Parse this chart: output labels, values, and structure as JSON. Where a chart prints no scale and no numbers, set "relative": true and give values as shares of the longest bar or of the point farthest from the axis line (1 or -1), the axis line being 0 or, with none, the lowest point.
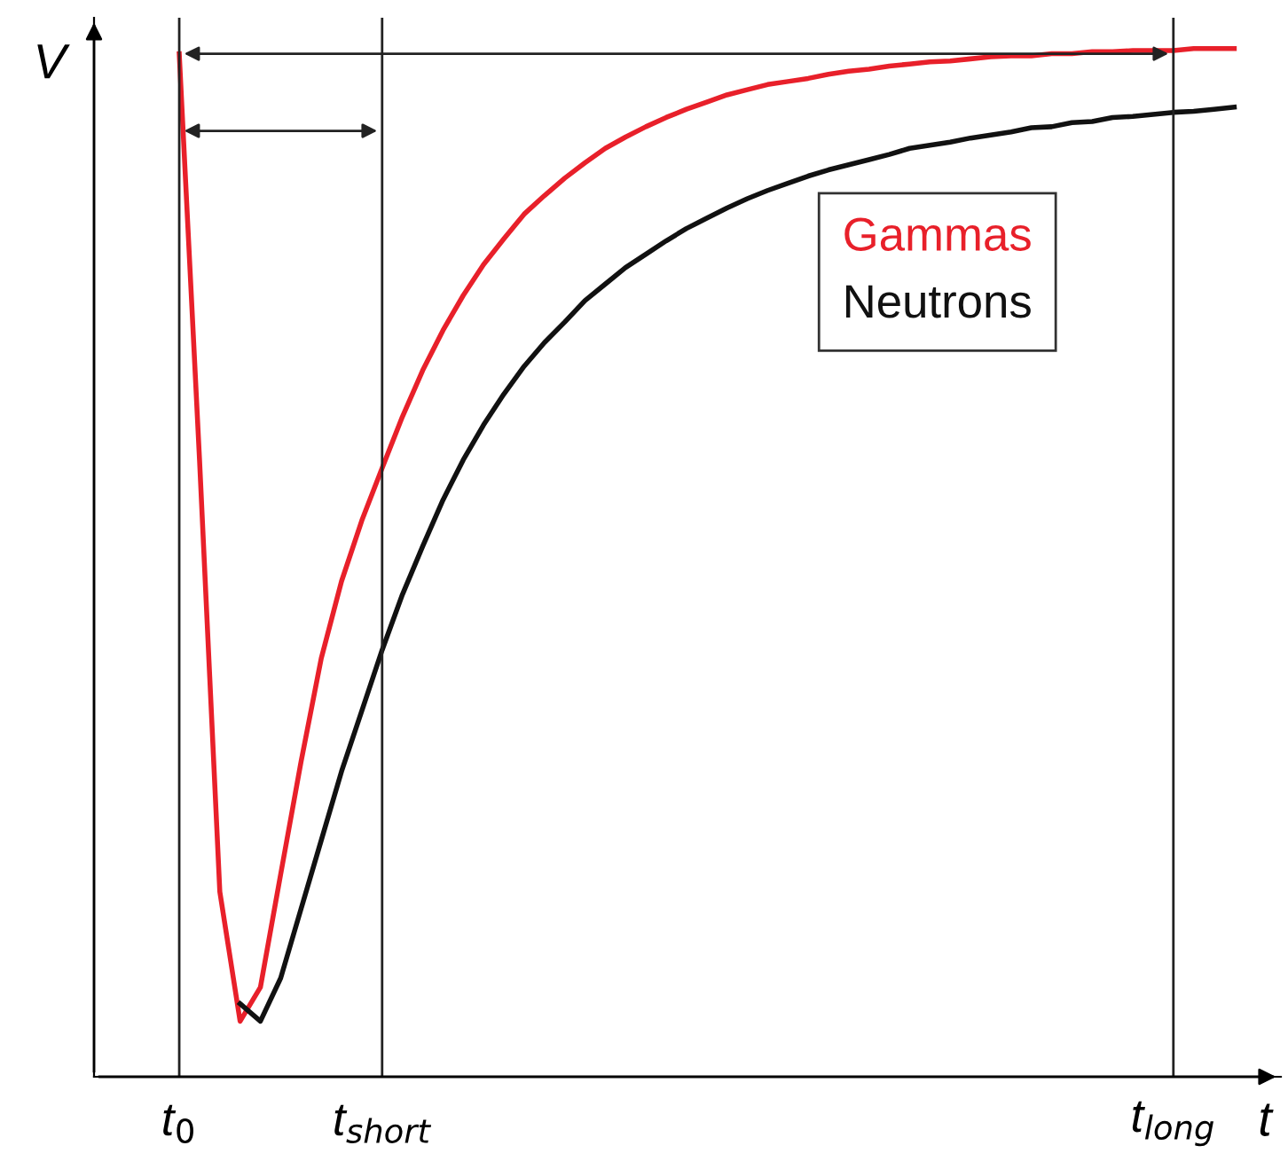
{
  "chart_data": {
    "type": "line",
    "relative": true,
    "xlabel": "t",
    "ylabel": "V",
    "legend": "right",
    "grid": false,
    "marker": "none",
    "line_style": "solid",
    "categories": [
      "t$_{0}$",
      null,
      null,
      null,
      null,
      null,
      null,
      null,
      null,
      null,
      "t$_{short}$",
      null,
      null,
      null,
      null,
      null,
      null,
      null,
      null,
      null,
      null,
      null,
      null,
      null,
      null,
      null,
      null,
      null,
      null,
      null,
      null,
      null,
      null,
      null,
      null,
      null,
      null,
      null,
      null,
      null,
      null,
      null,
      null,
      null,
      null,
      null,
      null,
      null,
      null,
      "t$_{long}$",
      null,
      null,
      null
    ],
    "series": [
      {
        "name": "Gammas",
        "color": "#e8202a",
        "values": [
          0.995,
          0.6,
          0.18,
          0.054,
          0.087,
          0.197,
          0.306,
          0.407,
          0.482,
          0.541,
          0.592,
          0.642,
          0.687,
          0.726,
          0.76,
          0.79,
          0.815,
          0.839,
          0.857,
          0.874,
          0.889,
          0.903,
          0.914,
          0.924,
          0.933,
          0.941,
          0.948,
          0.955,
          0.96,
          0.965,
          0.968,
          0.971,
          0.975,
          0.978,
          0.98,
          0.983,
          0.985,
          0.987,
          0.988,
          0.99,
          0.992,
          0.993,
          0.993,
          0.995,
          0.995,
          0.997,
          0.997,
          0.998,
          0.998,
          0.998,
          1,
          1,
          1
        ]
      },
      {
        "name": "Neutrons",
        "color": "#111111",
        "values": [
          null,
          null,
          null,
          0.071,
          0.054,
          0.096,
          0.163,
          0.23,
          0.297,
          0.356,
          0.415,
          0.469,
          0.516,
          0.561,
          0.6,
          0.634,
          0.664,
          0.691,
          0.714,
          0.734,
          0.755,
          0.771,
          0.787,
          0.8,
          0.813,
          0.825,
          0.835,
          0.845,
          0.854,
          0.862,
          0.869,
          0.876,
          0.882,
          0.887,
          0.892,
          0.897,
          0.903,
          0.906,
          0.909,
          0.913,
          0.916,
          0.919,
          0.923,
          0.924,
          0.928,
          0.929,
          0.933,
          0.934,
          0.936,
          0.938,
          0.939,
          0.941,
          0.943
        ]
      }
    ],
    "ref_lines": [
      {
        "axis": "x",
        "value": "t$_{0}$",
        "color": "#222222"
      },
      {
        "axis": "x",
        "value": "t$_{short}$",
        "color": "#222222"
      },
      {
        "axis": "x",
        "value": "t$_{long}$",
        "color": "#222222"
      }
    ]
  }
}
